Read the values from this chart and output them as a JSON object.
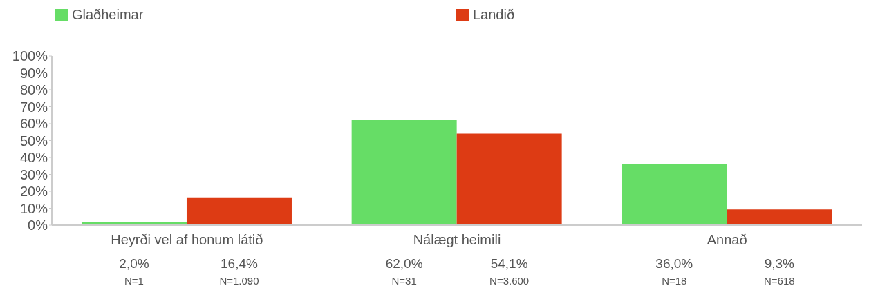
{
  "chart_data": {
    "type": "bar",
    "categories": [
      "Heyrði vel af honum látið",
      "Nálægt heimili",
      "Annað"
    ],
    "series": [
      {
        "name": "Glaðheimar",
        "color": "#66dd66",
        "values": [
          2.0,
          62.0,
          36.0
        ],
        "value_labels": [
          "2,0%",
          "62,0%",
          "36,0%"
        ]
      },
      {
        "name": "Landið",
        "color": "#dd3b14",
        "values": [
          16.4,
          54.1,
          9.3
        ],
        "value_labels": [
          "16,4%",
          "54,1%",
          "9,3%"
        ]
      }
    ],
    "ylim": [
      0,
      100
    ],
    "yticks": [
      {
        "value": 0,
        "label": "0%"
      },
      {
        "value": 10,
        "label": "10%"
      },
      {
        "value": 20,
        "label": "20%"
      },
      {
        "value": 30,
        "label": "30%"
      },
      {
        "value": 40,
        "label": "40%"
      },
      {
        "value": 50,
        "label": "50%"
      },
      {
        "value": 60,
        "label": "60%"
      },
      {
        "value": 70,
        "label": "70%"
      },
      {
        "value": 80,
        "label": "80%"
      },
      {
        "value": 90,
        "label": "90%"
      },
      {
        "value": 100,
        "label": "100%"
      }
    ],
    "annotations": [
      "N=1",
      "N=1.090",
      "N=31",
      "N=3.600",
      "N=18",
      "N=618"
    ],
    "legend": "top",
    "grid": false
  }
}
